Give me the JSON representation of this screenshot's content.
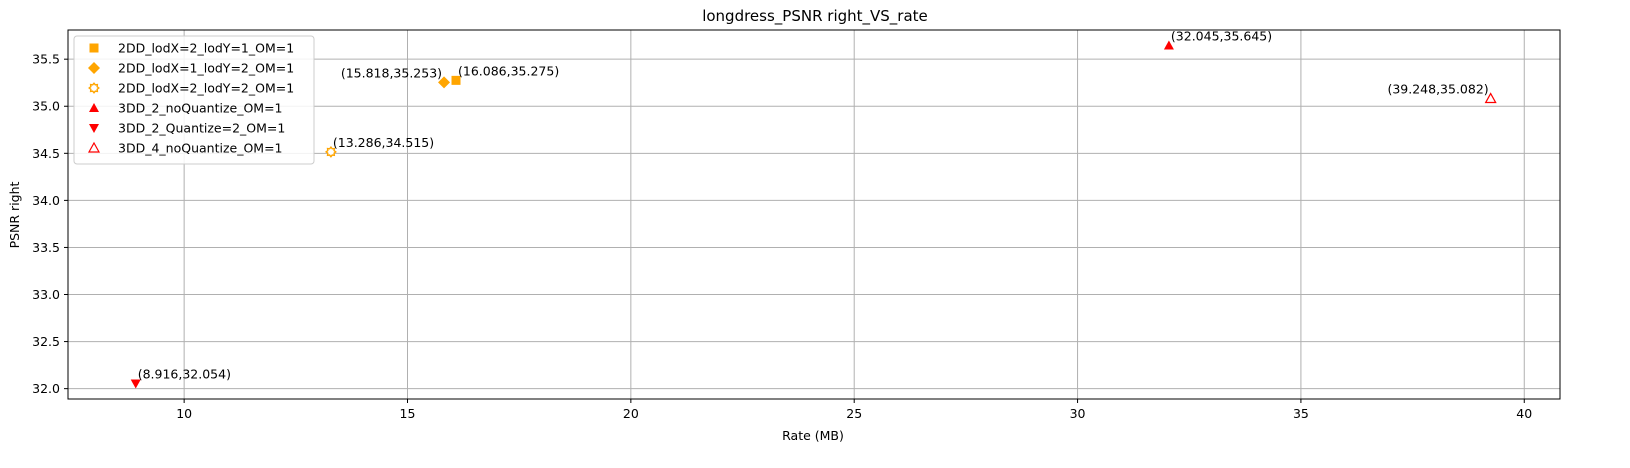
{
  "chart_data": {
    "type": "scatter",
    "title": "longdress_PSNR right_VS_rate",
    "xlabel": "Rate (MB)",
    "ylabel": "PSNR right",
    "xlim": [
      7.4,
      40.8
    ],
    "ylim": [
      31.89,
      35.81
    ],
    "xticks": [
      10,
      15,
      20,
      25,
      30,
      35,
      40
    ],
    "xtick_labels": [
      "10",
      "15",
      "20",
      "25",
      "30",
      "35",
      "40"
    ],
    "yticks": [
      32.0,
      32.5,
      33.0,
      33.5,
      34.0,
      34.5,
      35.0,
      35.5
    ],
    "ytick_labels": [
      "32.0",
      "32.5",
      "33.0",
      "33.5",
      "34.0",
      "34.5",
      "35.0",
      "35.5"
    ],
    "grid": true,
    "legend_position": "top-left",
    "series": [
      {
        "name": "2DD_lodX=2_lodY=1_OM=1",
        "marker": "square",
        "color": "#ffa500",
        "filled": true,
        "x": [
          16.086
        ],
        "y": [
          35.275
        ],
        "labels": [
          "(16.086,35.275)"
        ],
        "label_align": "right"
      },
      {
        "name": "2DD_lodX=1_lodY=2_OM=1",
        "marker": "diamond",
        "color": "#ffa500",
        "filled": true,
        "x": [
          15.818
        ],
        "y": [
          35.253
        ],
        "labels": [
          "(15.818,35.253)"
        ],
        "label_align": "left"
      },
      {
        "name": "2DD_lodX=2_lodY=2_OM=1",
        "marker": "gear",
        "color": "#ffa500",
        "filled": false,
        "x": [
          13.286
        ],
        "y": [
          34.515
        ],
        "labels": [
          "(13.286,34.515)"
        ],
        "label_align": "right"
      },
      {
        "name": "3DD_2_noQuantize_OM=1",
        "marker": "triangle-up",
        "color": "#ff0000",
        "filled": true,
        "x": [
          32.045
        ],
        "y": [
          35.645
        ],
        "labels": [
          "(32.045,35.645)"
        ],
        "label_align": "right"
      },
      {
        "name": "3DD_2_Quantize=2_OM=1",
        "marker": "triangle-down",
        "color": "#ff0000",
        "filled": true,
        "x": [
          8.916
        ],
        "y": [
          32.054
        ],
        "labels": [
          "(8.916,32.054)"
        ],
        "label_align": "right"
      },
      {
        "name": "3DD_4_noQuantize_OM=1",
        "marker": "triangle-up-open",
        "color": "#ff0000",
        "filled": false,
        "x": [
          39.248
        ],
        "y": [
          35.082
        ],
        "labels": [
          "(39.248,35.082)"
        ],
        "label_align": "left"
      }
    ]
  }
}
